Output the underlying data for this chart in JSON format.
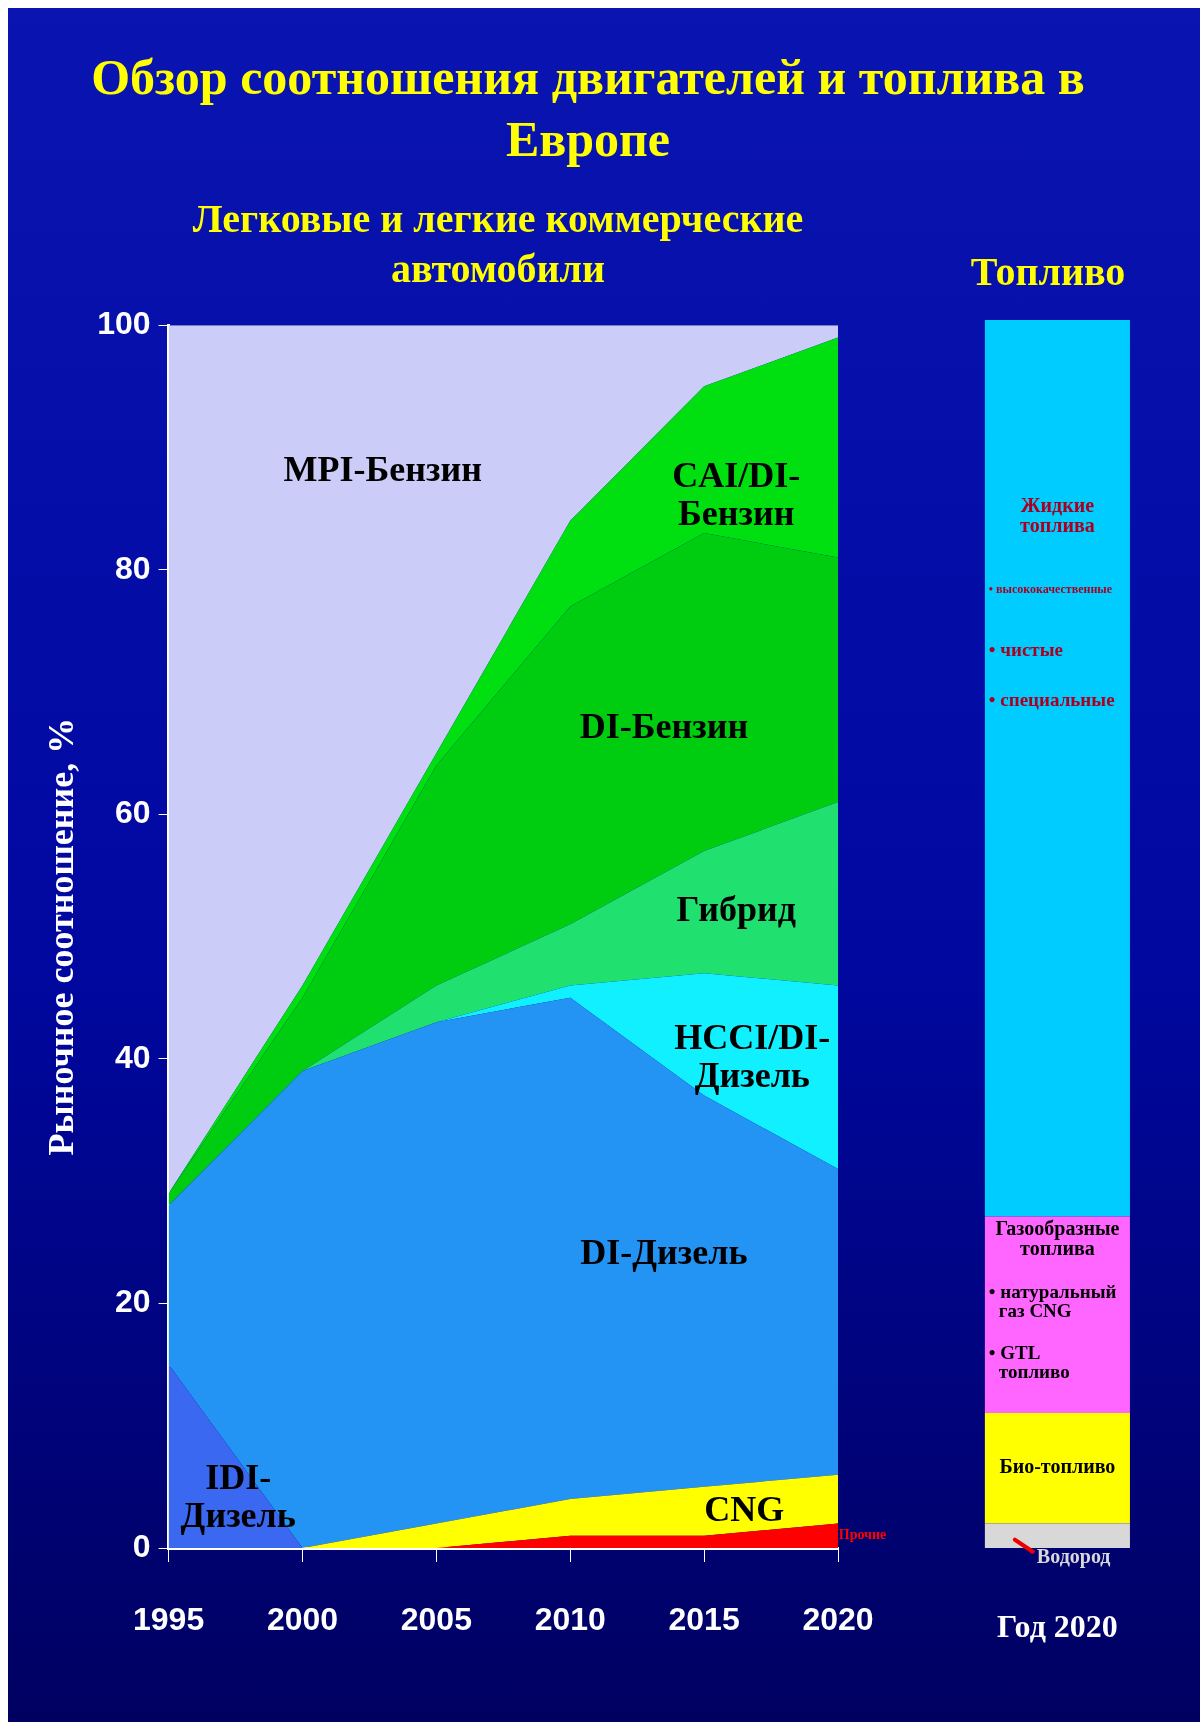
{
  "chart_data": [
    {
      "type": "area",
      "title": "Обзор соотношения двигателей и топлива в Европе",
      "subtitle": "Легковые и легкие коммерческие автомобили",
      "ylabel": "Рыночное соотношение, %",
      "x": [
        1995,
        2000,
        2005,
        2010,
        2015,
        2020
      ],
      "xlim": [
        1995,
        2020
      ],
      "xticks": [
        1995,
        2000,
        2005,
        2010,
        2015,
        2020
      ],
      "ylim": [
        0,
        100
      ],
      "yticks": [
        0,
        20,
        40,
        60,
        80,
        100
      ],
      "stacked": true,
      "grid": false,
      "series": [
        {
          "name": "Прочие",
          "color": "#ff0000",
          "values": [
            0,
            0,
            0,
            1,
            1,
            2
          ]
        },
        {
          "name": "CNG",
          "color": "#ffff00",
          "values": [
            0,
            0,
            2,
            3,
            4,
            4
          ]
        },
        {
          "name": "IDI-Дизель",
          "color": "#3a68f0",
          "values": [
            15,
            0,
            0,
            0,
            0,
            0
          ]
        },
        {
          "name": "DI-Дизель",
          "color": "#2494f4",
          "values": [
            13,
            39,
            41,
            41,
            32,
            25
          ]
        },
        {
          "name": "HCCI/DI-Дизель",
          "color": "#10f0ff",
          "values": [
            0,
            0,
            0,
            1,
            10,
            15
          ]
        },
        {
          "name": "Гибрид",
          "color": "#20e070",
          "values": [
            0,
            0,
            3,
            5,
            10,
            15
          ]
        },
        {
          "name": "DI-Бензин",
          "color": "#00cc10",
          "values": [
            1,
            6,
            18,
            26,
            26,
            20
          ]
        },
        {
          "name": "CAI/DI-Бензин",
          "color": "#00e010",
          "values": [
            0,
            1,
            1,
            7,
            12,
            18
          ]
        },
        {
          "name": "MPI-Бензин",
          "color": "#ccccf8",
          "values": [
            71,
            54,
            35,
            16,
            5,
            1
          ]
        }
      ]
    },
    {
      "type": "bar",
      "title": "Топливо",
      "categories": [
        "Год 2020"
      ],
      "stacked": true,
      "ylim": [
        0,
        100
      ],
      "tick_labels": "x",
      "series": [
        {
          "name": "Водород",
          "color": "#d8d8d8",
          "values": [
            2
          ]
        },
        {
          "name": "Био-топливо",
          "color": "#ffff00",
          "values": [
            9
          ]
        },
        {
          "name": "Газообразные топлива",
          "color": "#ff66ff",
          "values": [
            16
          ]
        },
        {
          "name": "Жидкие топлива",
          "color": "#00ccff",
          "values": [
            73
          ]
        }
      ],
      "annotations": [
        "• высококачественные",
        "• чистые",
        "• специальные",
        "• натуральный газ CNG",
        "• GTL топливо"
      ]
    }
  ]
}
